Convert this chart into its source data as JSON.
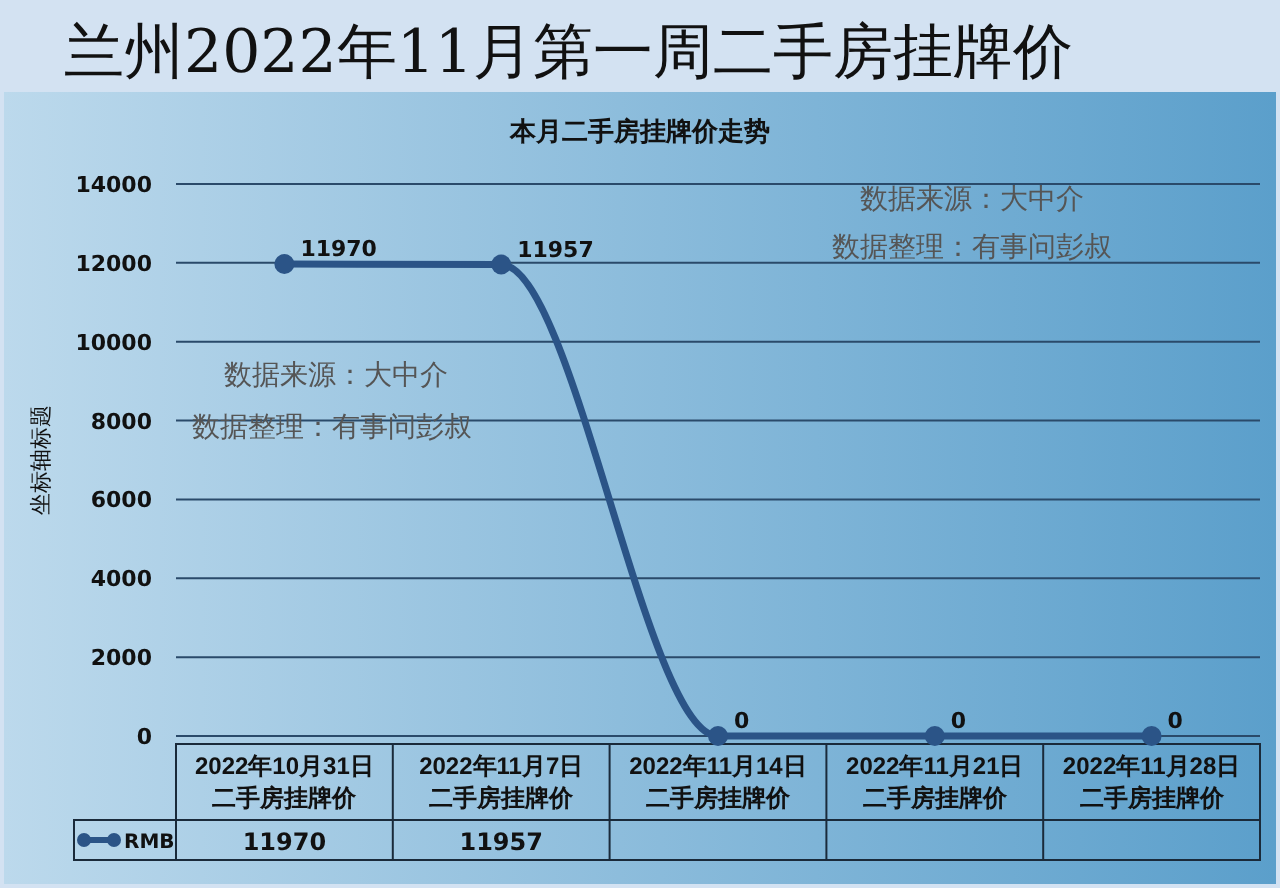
{
  "chart_data": {
    "type": "line",
    "title": "兰州2022年11月第一周二手房挂牌价",
    "subtitle": "本月二手房挂牌价走势",
    "ylabel": "坐标轴标题",
    "categories": [
      "2022年10月31日二手房挂牌价",
      "2022年11月7日二手房挂牌价",
      "2022年11月14日二手房挂牌价",
      "2022年11月21日二手房挂牌价",
      "2022年11月28日二手房挂牌价"
    ],
    "series": [
      {
        "name": "RMB",
        "color": "#2b5487",
        "values": [
          11970,
          11957,
          0,
          0,
          0
        ],
        "value_labels": [
          "11970",
          "11957",
          "0",
          "0",
          "0"
        ]
      }
    ],
    "ylim": [
      0,
      14000
    ],
    "yticks": [
      0,
      2000,
      4000,
      6000,
      8000,
      10000,
      12000,
      14000
    ],
    "grid": "y",
    "marker": "circle",
    "legend": "bottom left",
    "annotations": [
      "数据来源：大中介",
      "数据整理：有事问彭叔",
      "数据来源：大中介",
      "数据整理：有事问彭叔",
      "11970",
      "11957"
    ]
  }
}
